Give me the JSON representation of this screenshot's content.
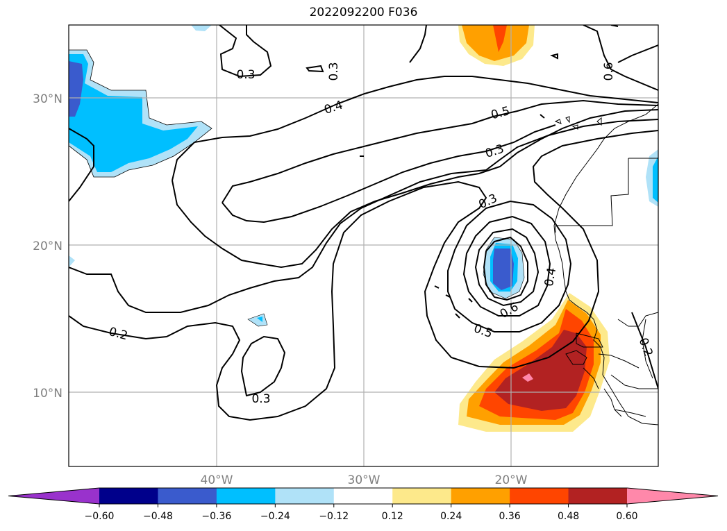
{
  "title": "2022092200 F036",
  "map": {
    "lat_labels": [
      "30°N",
      "20°N",
      "10°N"
    ],
    "lon_labels": [
      "40°W",
      "30°W",
      "20°W"
    ],
    "contour_labels": [
      "0.3",
      "0.3",
      "0.4",
      "0.5",
      "0.3",
      "0.3",
      "0.6",
      "0.4",
      "0.6",
      "0.5",
      "0.2",
      "0.3",
      "0.2"
    ],
    "gridlines": true
  },
  "colorbar": {
    "ticks": [
      "−0.60",
      "−0.48",
      "−0.36",
      "−0.24",
      "−0.12",
      "0.12",
      "0.24",
      "0.36",
      "0.48",
      "0.60"
    ],
    "colors": [
      "#9932cc",
      "#00008b",
      "#3a5bcd",
      "#00bfff",
      "#b0e2f8",
      "#ffffff",
      "#fde98b",
      "#ffa000",
      "#ff4500",
      "#b22222",
      "#ff88aa"
    ],
    "extend": "both"
  }
}
